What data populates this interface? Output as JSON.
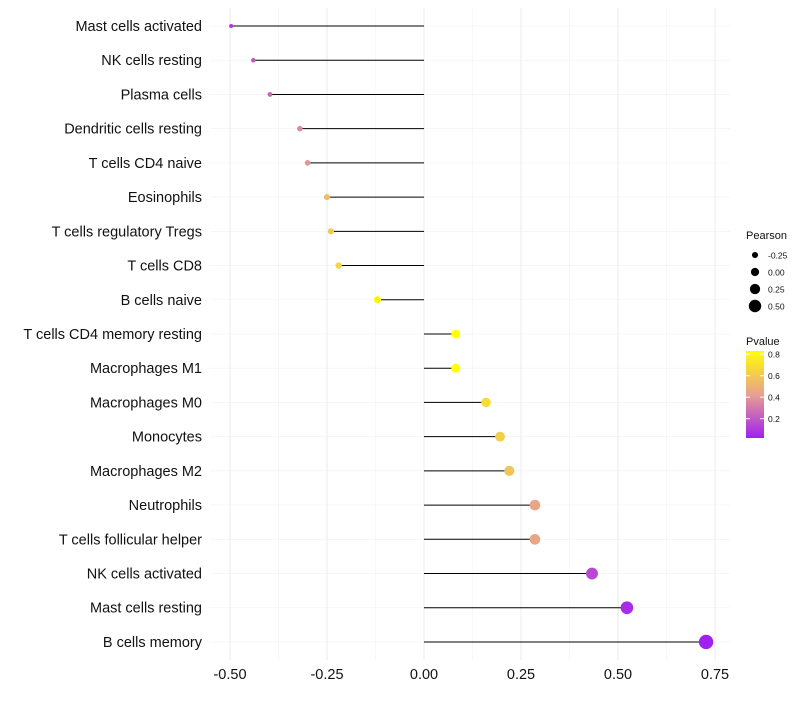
{
  "chart_data": {
    "type": "lollipop",
    "title": "",
    "xlabel": "",
    "ylabel": "",
    "xlim": [
      -0.53,
      0.78
    ],
    "x_ticks": [
      -0.5,
      -0.25,
      0,
      0.25,
      0.5,
      0.75
    ],
    "x_tick_labels": [
      "-0.50",
      "-0.25",
      "0.00",
      "0.25",
      "0.50",
      "0.75"
    ],
    "grid": true,
    "categories": [
      "Mast cells activated",
      "NK cells resting",
      "Plasma cells",
      "Dendritic cells resting",
      "T cells CD4 naive",
      "Eosinophils",
      "T cells regulatory  Tregs",
      "T cells CD8",
      "B cells naive",
      "T cells CD4 memory resting",
      "Macrophages M1",
      "Macrophages M0",
      "Monocytes",
      "Macrophages M2",
      "Neutrophils",
      "T cells follicular helper",
      "NK cells activated",
      "Mast cells resting",
      "B cells memory"
    ],
    "pearson": [
      -0.497,
      -0.44,
      -0.397,
      -0.32,
      -0.3,
      -0.25,
      -0.24,
      -0.22,
      -0.12,
      0.082,
      0.082,
      0.16,
      0.196,
      0.22,
      0.286,
      0.286,
      0.433,
      0.523,
      0.727
    ],
    "pvalue": [
      0.1,
      0.2,
      0.25,
      0.35,
      0.4,
      0.55,
      0.6,
      0.65,
      0.8,
      0.83,
      0.83,
      0.68,
      0.62,
      0.58,
      0.45,
      0.45,
      0.15,
      0.06,
      0.02
    ],
    "legend": {
      "position": "right",
      "size_title": "Pearson",
      "size_values": [
        -0.25,
        0,
        0.25,
        0.5
      ],
      "size_labels": [
        "-0.25",
        "0.00",
        "0.25",
        "0.50"
      ],
      "color_title": "Pvalue",
      "color_range": [
        0.02,
        0.83
      ],
      "color_ticks": [
        0.8,
        0.6,
        0.4,
        0.2
      ],
      "color_labels": [
        "0.8",
        "0.6",
        "0.4",
        "0.2"
      ],
      "color_low": "#a020f0",
      "color_mid": "#e8a090",
      "color_high": "#ffff00"
    }
  }
}
